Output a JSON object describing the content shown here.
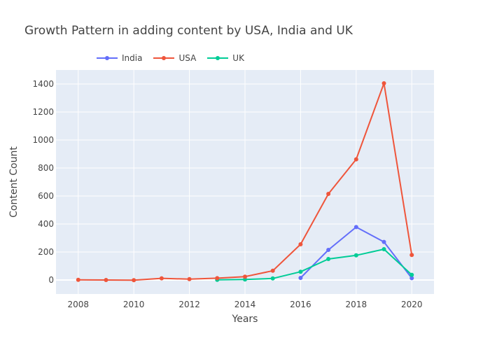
{
  "chart_data": {
    "type": "line",
    "title": "Growth Pattern in adding content by USA, India and UK",
    "xlabel": "Years",
    "ylabel": "Content Count",
    "xlim": [
      2007.2,
      2020.8
    ],
    "ylim": [
      -100,
      1500
    ],
    "x_ticks": [
      2008,
      2010,
      2012,
      2014,
      2016,
      2018,
      2020
    ],
    "y_ticks": [
      0,
      200,
      400,
      600,
      800,
      1000,
      1200,
      1400
    ],
    "grid": true,
    "legend_position": "top-left",
    "series": [
      {
        "name": "India",
        "color": "#636efa",
        "x": [
          2016,
          2017,
          2018,
          2019,
          2020
        ],
        "y": [
          15,
          215,
          378,
          272,
          13
        ]
      },
      {
        "name": "USA",
        "color": "#ef553b",
        "x": [
          2008,
          2009,
          2010,
          2011,
          2012,
          2013,
          2014,
          2015,
          2016,
          2017,
          2018,
          2019,
          2020
        ],
        "y": [
          1,
          0,
          -1,
          12,
          6,
          13,
          24,
          66,
          255,
          615,
          862,
          1405,
          179
        ]
      },
      {
        "name": "UK",
        "color": "#00cc96",
        "x": [
          2013,
          2014,
          2015,
          2016,
          2017,
          2018,
          2019,
          2020
        ],
        "y": [
          1,
          4,
          11,
          59,
          150,
          176,
          220,
          37
        ]
      }
    ]
  }
}
